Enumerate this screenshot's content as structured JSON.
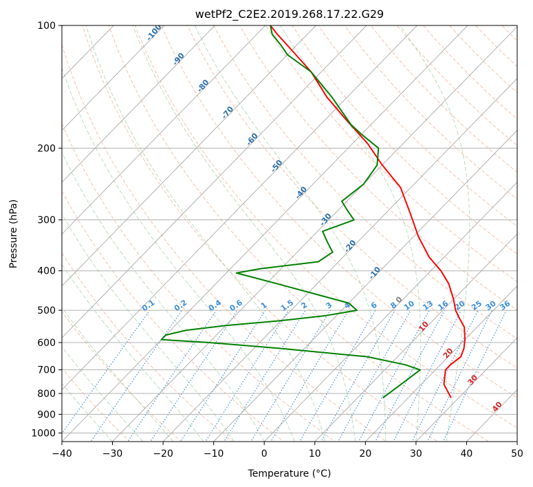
{
  "chart_data": {
    "type": "line",
    "subtype": "skew-t log-p",
    "title": "wetPf2_C2E2.2019.268.17.22.G29",
    "xlabel": "Temperature (°C)",
    "ylabel": "Pressure (hPa)",
    "xlim": [
      -40,
      50
    ],
    "ylim": [
      1050,
      100
    ],
    "y_scale": "log",
    "grid": true,
    "x_ticks": [
      "−40",
      "−30",
      "−20",
      "−10",
      "0",
      "10",
      "20",
      "30",
      "40",
      "50"
    ],
    "y_ticks": [
      "100",
      "200",
      "300",
      "400",
      "500",
      "600",
      "700",
      "800",
      "900",
      "1000"
    ],
    "isotherm_labels": [
      "-100",
      "-90",
      "-80",
      "-70",
      "-60",
      "-50",
      "-40",
      "-30",
      "-20",
      "-10",
      "0",
      "10",
      "20",
      "30",
      "40"
    ],
    "mixing_ratio_labels": [
      "0.1",
      "0.2",
      "0.4",
      "0.6",
      "1",
      "1.5",
      "2",
      "3",
      "4",
      "6",
      "8",
      "10",
      "13",
      "16",
      "20",
      "25",
      "30",
      "36"
    ],
    "colors": {
      "temperature": "#ff0000",
      "dewpoint": "#008000",
      "grid": "#b0b0b0",
      "dry_adiabat": "#f4a582",
      "moist_adiabat": "#a6d4a6",
      "mixing_ratio": "#3b8fd9",
      "isotherm_label_cold": "#2a6fad",
      "isotherm_label_warm": "#d62728"
    },
    "series": [
      {
        "name": "temperature",
        "p": [
          820,
          760,
          700,
          680,
          650,
          620,
          590,
          550,
          520,
          500,
          470,
          430,
          400,
          370,
          330,
          290,
          250,
          220,
          195,
          170,
          150,
          130,
          115,
          105,
          100
        ],
        "t": [
          28.5,
          24.5,
          22,
          22,
          22.5,
          21.5,
          20,
          17.5,
          14.5,
          12.5,
          10,
          6,
          2,
          -3,
          -9,
          -15,
          -22,
          -30,
          -37,
          -46,
          -54,
          -62,
          -70,
          -76,
          -79
        ]
      },
      {
        "name": "dewpoint",
        "p": [
          820,
          760,
          700,
          680,
          650,
          620,
          600,
          590,
          575,
          560,
          545,
          530,
          515,
          500,
          480,
          460,
          430,
          405,
          395,
          380,
          360,
          340,
          320,
          300,
          285,
          270,
          245,
          220,
          200,
          185,
          175,
          150,
          130,
          118,
          112,
          105,
          100
        ],
        "t": [
          15,
          16,
          17,
          13,
          4,
          -15,
          -30,
          -40,
          -40,
          -37,
          -30,
          -20,
          -12,
          -7,
          -10,
          -17,
          -28,
          -38,
          -34,
          -24,
          -23,
          -26,
          -29,
          -25,
          -28,
          -31,
          -30,
          -31,
          -34,
          -40,
          -44,
          -53,
          -62,
          -70,
          -73,
          -77,
          -79
        ]
      }
    ]
  }
}
